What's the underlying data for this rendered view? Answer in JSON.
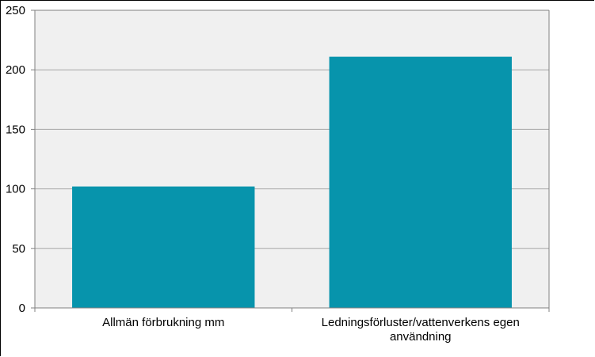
{
  "chart_data": {
    "type": "bar",
    "title": "",
    "xlabel": "",
    "ylabel": "",
    "categories": [
      "Allmän förbrukning mm",
      "Ledningsförluster/vattenverkens egen användning"
    ],
    "category_label_lines": [
      [
        "Allmän förbrukning mm"
      ],
      [
        "Ledningsförluster/vattenverkens egen",
        "användning"
      ]
    ],
    "values": [
      102,
      211
    ],
    "ylim": [
      0,
      250
    ],
    "yticks": [
      "0",
      "50",
      "100",
      "150",
      "200",
      "250"
    ],
    "grid": true,
    "legend": "none",
    "bar_color": "#0794ac",
    "plot_background": "#f0f0f0",
    "gridline_color": "#a6a6a6"
  }
}
